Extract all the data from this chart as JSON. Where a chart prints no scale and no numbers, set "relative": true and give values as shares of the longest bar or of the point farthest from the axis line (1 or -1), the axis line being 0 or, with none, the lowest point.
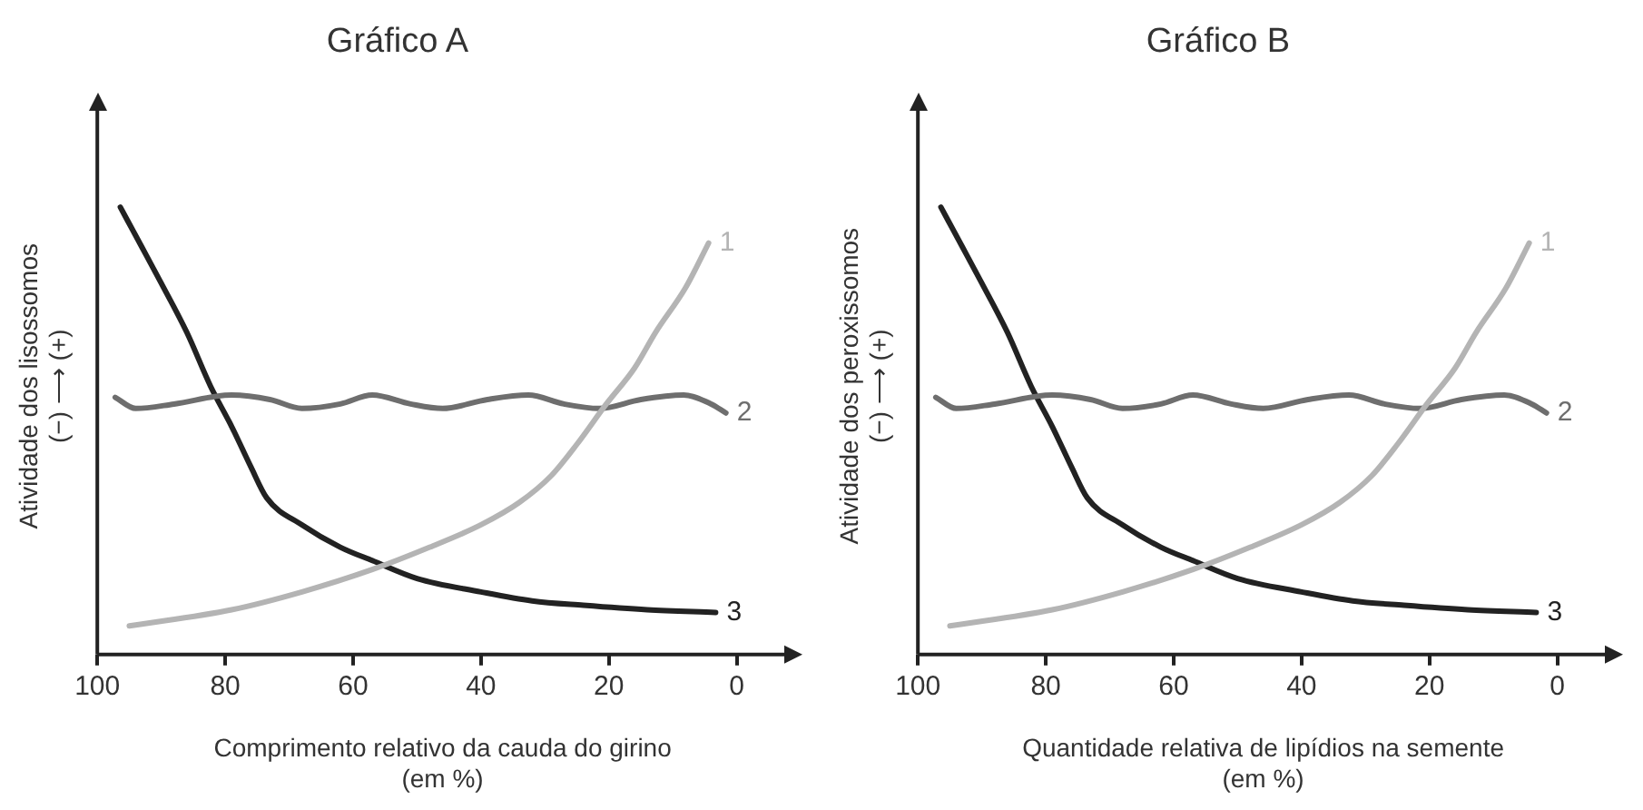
{
  "chart_data": [
    {
      "type": "line",
      "title": "Gráfico A",
      "xlabel": "Comprimento relativo da cauda do girino\n(em %)",
      "ylabel": "Atividade dos lisossomos\n(−) ⟶ (+)",
      "relative": true,
      "xlim": [
        100,
        -8
      ],
      "xticks": [
        100,
        80,
        60,
        40,
        20,
        0
      ],
      "grid": false,
      "legend": false,
      "marker": "none",
      "line_style": "solid",
      "series": [
        {
          "name": "1",
          "color": "#b4b4b4",
          "x": [
            95,
            79,
            68,
            57,
            48,
            40,
            34,
            29,
            25,
            20.4,
            16,
            12.7,
            8,
            4.4
          ],
          "values": [
            0.064,
            0.1,
            0.14,
            0.19,
            0.24,
            0.29,
            0.34,
            0.4,
            0.47,
            0.56,
            0.64,
            0.72,
            0.82,
            0.92
          ]
        },
        {
          "name": "2",
          "color": "#6e6e6e",
          "x": [
            97.2,
            94,
            88,
            79,
            73,
            68,
            62,
            57,
            51,
            46,
            39,
            32.6,
            27,
            21.5,
            15,
            8.3,
            4,
            1.7
          ],
          "values": [
            0.575,
            0.55,
            0.56,
            0.58,
            0.57,
            0.55,
            0.56,
            0.58,
            0.56,
            0.55,
            0.57,
            0.58,
            0.56,
            0.55,
            0.57,
            0.58,
            0.56,
            0.54
          ]
        },
        {
          "name": "3",
          "color": "#222222",
          "x": [
            96.4,
            93,
            90,
            86,
            82.3,
            79,
            76,
            73.5,
            68,
            62,
            57,
            50,
            40,
            32,
            24,
            14,
            3.3
          ],
          "values": [
            1,
            0.91,
            0.83,
            0.72,
            0.6,
            0.51,
            0.42,
            0.35,
            0.29,
            0.24,
            0.21,
            0.17,
            0.14,
            0.12,
            0.11,
            0.1,
            0.094
          ]
        }
      ]
    },
    {
      "type": "line",
      "title": "Gráfico B",
      "xlabel": "Quantidade relativa de lipídios na semente\n(em %)",
      "ylabel": "Atividade dos peroxissomos\n(−) ⟶ (+)",
      "relative": true,
      "xlim": [
        100,
        -8
      ],
      "xticks": [
        100,
        80,
        60,
        40,
        20,
        0
      ],
      "grid": false,
      "legend": false,
      "marker": "none",
      "line_style": "solid",
      "series": [
        {
          "name": "1",
          "color": "#b4b4b4",
          "x": [
            95,
            79,
            68,
            57,
            48,
            40,
            34,
            29,
            25,
            20.4,
            16,
            12.7,
            8,
            4.4
          ],
          "values": [
            0.064,
            0.1,
            0.14,
            0.19,
            0.24,
            0.29,
            0.34,
            0.4,
            0.47,
            0.56,
            0.64,
            0.72,
            0.82,
            0.92
          ]
        },
        {
          "name": "2",
          "color": "#6e6e6e",
          "x": [
            97.2,
            94,
            88,
            79,
            73,
            68,
            62,
            57,
            51,
            46,
            39,
            32.6,
            27,
            21.5,
            15,
            8.3,
            4,
            1.7
          ],
          "values": [
            0.575,
            0.55,
            0.56,
            0.58,
            0.57,
            0.55,
            0.56,
            0.58,
            0.56,
            0.55,
            0.57,
            0.58,
            0.56,
            0.55,
            0.57,
            0.58,
            0.56,
            0.54
          ]
        },
        {
          "name": "3",
          "color": "#222222",
          "x": [
            96.4,
            93,
            90,
            86,
            82.3,
            79,
            76,
            73.5,
            68,
            62,
            57,
            50,
            40,
            32,
            24,
            14,
            3.3
          ],
          "values": [
            1,
            0.91,
            0.83,
            0.72,
            0.6,
            0.51,
            0.42,
            0.35,
            0.29,
            0.24,
            0.21,
            0.17,
            0.14,
            0.12,
            0.11,
            0.1,
            0.094
          ]
        }
      ]
    }
  ]
}
